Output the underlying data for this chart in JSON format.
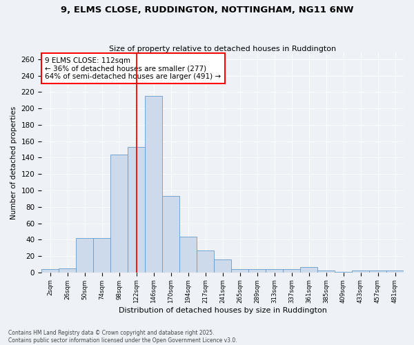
{
  "title_line1": "9, ELMS CLOSE, RUDDINGTON, NOTTINGHAM, NG11 6NW",
  "title_line2": "Size of property relative to detached houses in Ruddington",
  "xlabel": "Distribution of detached houses by size in Ruddington",
  "ylabel": "Number of detached properties",
  "categories": [
    "2sqm",
    "26sqm",
    "50sqm",
    "74sqm",
    "98sqm",
    "122sqm",
    "146sqm",
    "170sqm",
    "194sqm",
    "217sqm",
    "241sqm",
    "265sqm",
    "289sqm",
    "313sqm",
    "337sqm",
    "361sqm",
    "385sqm",
    "409sqm",
    "433sqm",
    "457sqm",
    "481sqm"
  ],
  "values": [
    4,
    5,
    42,
    42,
    144,
    153,
    215,
    93,
    44,
    27,
    16,
    4,
    4,
    4,
    4,
    7,
    2,
    1,
    2,
    2,
    2
  ],
  "bar_color": "#ccdaeb",
  "bar_edge_color": "#6699cc",
  "vline_x_index": 5,
  "vline_color": "red",
  "annotation_text": "9 ELMS CLOSE: 112sqm\n← 36% of detached houses are smaller (277)\n64% of semi-detached houses are larger (491) →",
  "annotation_box_color": "white",
  "annotation_box_edge": "red",
  "ylim": [
    0,
    268
  ],
  "yticks": [
    0,
    20,
    40,
    60,
    80,
    100,
    120,
    140,
    160,
    180,
    200,
    220,
    240,
    260
  ],
  "footer_line1": "Contains HM Land Registry data © Crown copyright and database right 2025.",
  "footer_line2": "Contains public sector information licensed under the Open Government Licence v3.0.",
  "bg_color": "#eef2f7",
  "plot_bg_color": "#eef2f7",
  "grid_color": "white"
}
